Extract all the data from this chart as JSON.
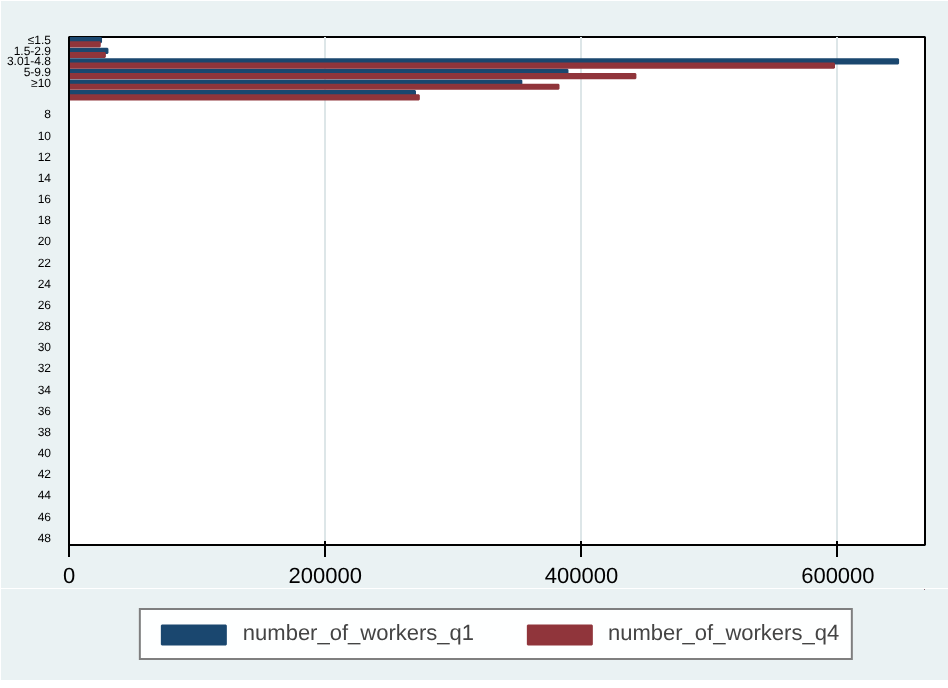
{
  "chart_data": {
    "type": "bar",
    "orientation": "horizontal",
    "categories": [
      "≤1.5",
      "1.5-2.9",
      "3.01-4.8",
      "5-9.9",
      "≥10",
      null,
      null,
      "8",
      null,
      "10",
      null,
      "12",
      null,
      "14",
      null,
      "16",
      null,
      "18",
      null,
      "20",
      null,
      "22",
      null,
      "24",
      null,
      "26",
      null,
      "28",
      null,
      "30",
      null,
      "32",
      null,
      "34",
      null,
      "36",
      null,
      "38",
      null,
      "40",
      null,
      "42",
      null,
      "44",
      null,
      "46",
      null,
      "48"
    ],
    "series": [
      {
        "name": "number_of_workers_q1",
        "color": "#1a476f",
        "values": [
          25000,
          30000,
          647000,
          389000,
          353000,
          270000,
          null,
          null,
          null,
          null,
          null,
          null,
          null,
          null,
          null,
          null,
          null,
          null,
          null,
          null,
          null,
          null,
          null,
          null,
          null,
          null,
          null,
          null,
          null,
          null,
          null,
          null,
          null,
          null,
          null,
          null,
          null,
          null,
          null,
          null,
          null,
          null,
          null,
          null,
          null,
          null,
          null,
          null
        ]
      },
      {
        "name": "number_of_workers_q4",
        "color": "#90353b",
        "values": [
          24000,
          28000,
          597000,
          442000,
          382000,
          273000,
          null,
          null,
          null,
          null,
          null,
          null,
          null,
          null,
          null,
          null,
          null,
          null,
          null,
          null,
          null,
          null,
          null,
          null,
          null,
          null,
          null,
          null,
          null,
          null,
          null,
          null,
          null,
          null,
          null,
          null,
          null,
          null,
          null,
          null,
          null,
          null,
          null,
          null,
          null,
          null,
          null,
          null
        ]
      }
    ],
    "xlim": [
      0,
      668000
    ],
    "xticks": [
      0,
      200000,
      400000,
      600000
    ],
    "grid": "x",
    "legend": "bottom"
  }
}
